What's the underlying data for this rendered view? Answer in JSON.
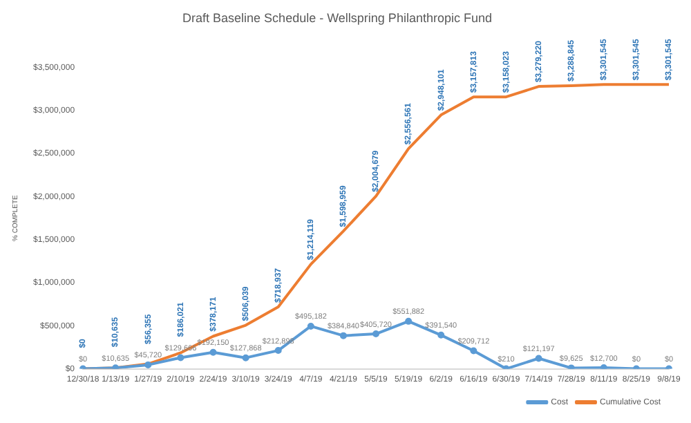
{
  "chart_data": {
    "type": "line",
    "title": "Draft Baseline Schedule - Wellspring Philanthropic Fund",
    "ylabel": "% COMPLETE",
    "categories": [
      "12/30/18",
      "1/13/19",
      "1/27/19",
      "2/10/19",
      "2/24/19",
      "3/10/19",
      "3/24/19",
      "4/7/19",
      "4/21/19",
      "5/5/19",
      "5/19/19",
      "6/2/19",
      "6/16/19",
      "6/30/19",
      "7/14/19",
      "7/28/19",
      "8/11/19",
      "8/25/19",
      "9/8/19"
    ],
    "series": [
      {
        "name": "Cost",
        "color": "#5b9bd5",
        "marker": "circle",
        "values": [
          0,
          10635,
          45720,
          129666,
          192150,
          127868,
          212898,
          495182,
          384840,
          405720,
          551882,
          391540,
          209712,
          210,
          121197,
          9625,
          12700,
          0,
          0
        ],
        "value_labels": [
          "$0",
          "$10,635",
          "$45,720",
          "$129,666",
          "$192,150",
          "$127,868",
          "$212,898",
          "$495,182",
          "$384,840",
          "$405,720",
          "$551,882",
          "$391,540",
          "$209,712",
          "$210",
          "$121,197",
          "$9,625",
          "$12,700",
          "$0",
          "$0"
        ]
      },
      {
        "name": "Cumulative Cost",
        "color": "#ed7d31",
        "marker": "none",
        "values": [
          0,
          10635,
          56355,
          186021,
          378171,
          506039,
          718937,
          1214119,
          1598959,
          2004679,
          2556561,
          2948101,
          3157813,
          3158023,
          3279220,
          3288845,
          3301545,
          3301545,
          3301545
        ],
        "value_labels": [
          "$0",
          "$10,635",
          "$56,355",
          "$186,021",
          "$378,171",
          "$506,039",
          "$718,937",
          "$1,214,119",
          "$1,598,959",
          "$2,004,679",
          "$2,556,561",
          "$2,948,101",
          "$3,157,813",
          "$3,158,023",
          "$3,279,220",
          "$3,288,845",
          "$3,301,545",
          "$3,301,545",
          "$3,301,545"
        ]
      }
    ],
    "ylim": [
      0,
      3500000
    ],
    "yticks": [
      {
        "value": 0,
        "label": "$0"
      },
      {
        "value": 500000,
        "label": "$500,000"
      },
      {
        "value": 1000000,
        "label": "$1,000,000"
      },
      {
        "value": 1500000,
        "label": "$1,500,000"
      },
      {
        "value": 2000000,
        "label": "$2,000,000"
      },
      {
        "value": 2500000,
        "label": "$2,500,000"
      },
      {
        "value": 3000000,
        "label": "$3,000,000"
      },
      {
        "value": 3500000,
        "label": "$3,500,000"
      }
    ],
    "grid": false,
    "legend": "bottom right"
  }
}
